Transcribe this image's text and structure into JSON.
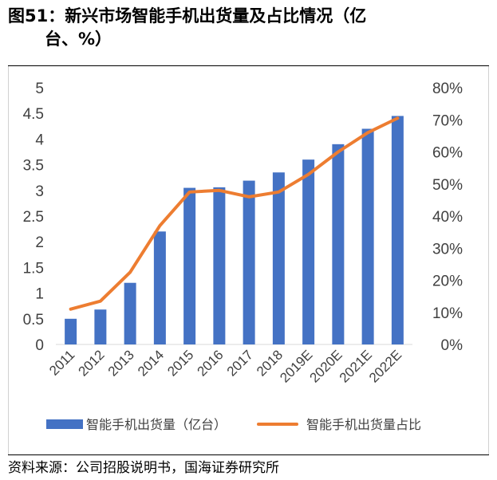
{
  "title": {
    "prefix": "图51：",
    "text_line1": "新兴市场智能手机出货量及占比情况（亿",
    "text_line2": "台、%）"
  },
  "source": "资料来源：公司招股说明书，国海证券研究所",
  "colors": {
    "bar": "#4472C4",
    "line": "#ED7D31",
    "axis": "#D9D9D9",
    "text": "#404040"
  },
  "chart_data": {
    "type": "bar",
    "categories": [
      "2011",
      "2012",
      "2013",
      "2014",
      "2015",
      "2016",
      "2017",
      "2018",
      "2019E",
      "2020E",
      "2021E",
      "2022E"
    ],
    "series": [
      {
        "name": "智能手机出货量（亿台）",
        "type": "bar",
        "axis": "left",
        "values": [
          0.5,
          0.68,
          1.2,
          2.2,
          3.05,
          3.06,
          3.19,
          3.35,
          3.6,
          3.9,
          4.2,
          4.45
        ]
      },
      {
        "name": "智能手机出货量占比",
        "type": "line",
        "axis": "right",
        "values": [
          0.11,
          0.135,
          0.225,
          0.37,
          0.475,
          0.48,
          0.46,
          0.475,
          0.53,
          0.6,
          0.66,
          0.705
        ]
      }
    ],
    "y_left": {
      "ylim": [
        0,
        5
      ],
      "ticks": [
        "0",
        "0.5",
        "1",
        "1.5",
        "2",
        "2.5",
        "3",
        "3.5",
        "4",
        "4.5",
        "5"
      ]
    },
    "y_right": {
      "ylim": [
        0,
        0.8
      ],
      "ticks": [
        "0%",
        "10%",
        "20%",
        "30%",
        "40%",
        "50%",
        "60%",
        "70%",
        "80%"
      ]
    },
    "xlabel": "",
    "ylabel": "",
    "grid": false,
    "legend": "bottom"
  }
}
